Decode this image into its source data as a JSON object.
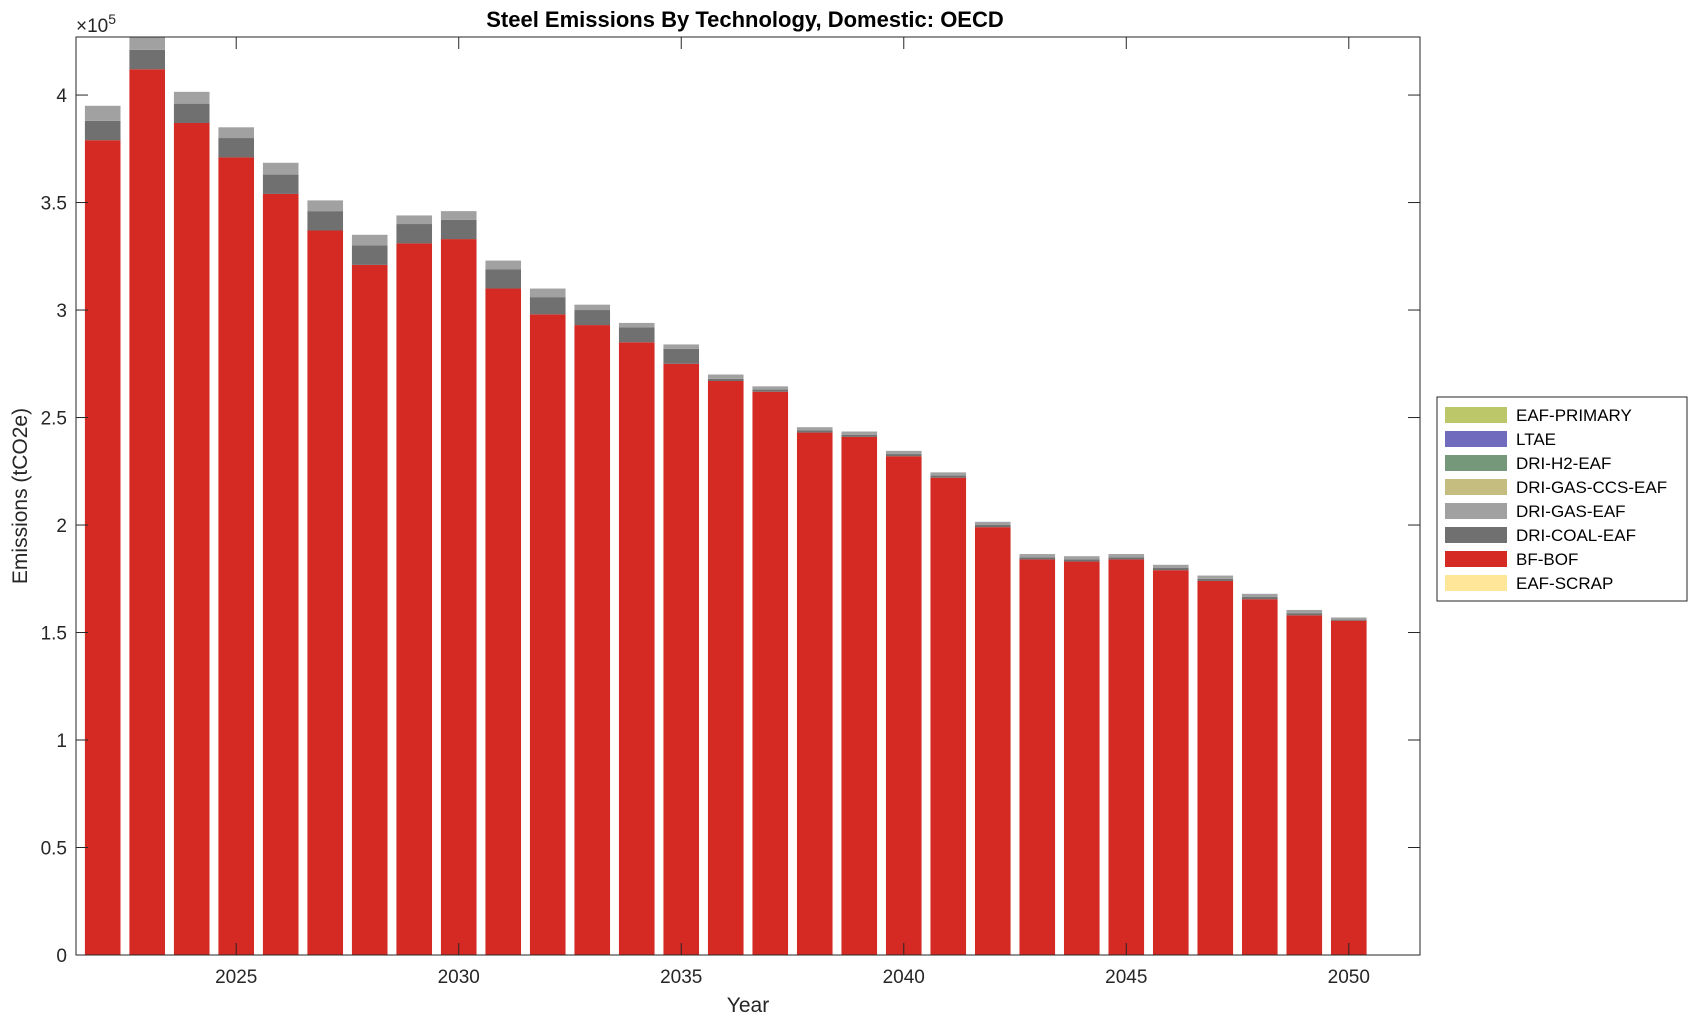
{
  "chart_data": {
    "type": "bar",
    "stacked": true,
    "title": "Steel Emissions By Technology, Domestic: OECD",
    "xlabel": "Year",
    "ylabel": "Emissions (tCO2e)",
    "y_multiplier_label": "×10",
    "y_multiplier_exponent": "5",
    "ylim": [
      0,
      4.27
    ],
    "xlim": [
      2021.4,
      2051.6
    ],
    "grid": false,
    "legend_position": "right",
    "yticks": [
      {
        "value": 0,
        "label": "0"
      },
      {
        "value": 0.5,
        "label": "0.5"
      },
      {
        "value": 1,
        "label": "1"
      },
      {
        "value": 1.5,
        "label": "1.5"
      },
      {
        "value": 2,
        "label": "2"
      },
      {
        "value": 2.5,
        "label": "2.5"
      },
      {
        "value": 3,
        "label": "3"
      },
      {
        "value": 3.5,
        "label": "3.5"
      },
      {
        "value": 4,
        "label": "4"
      }
    ],
    "xticks": [
      {
        "value": 2025,
        "label": "2025"
      },
      {
        "value": 2030,
        "label": "2030"
      },
      {
        "value": 2035,
        "label": "2035"
      },
      {
        "value": 2040,
        "label": "2040"
      },
      {
        "value": 2045,
        "label": "2045"
      },
      {
        "value": 2050,
        "label": "2050"
      }
    ],
    "categories": [
      2022,
      2023,
      2024,
      2025,
      2026,
      2027,
      2028,
      2029,
      2030,
      2031,
      2032,
      2033,
      2034,
      2035,
      2036,
      2037,
      2038,
      2039,
      2040,
      2041,
      2042,
      2043,
      2044,
      2045,
      2046,
      2047,
      2048,
      2049,
      2050
    ],
    "series": [
      {
        "name": "EAF-SCRAP",
        "color": "#ffe699",
        "values": [
          0,
          0,
          0,
          0,
          0,
          0,
          0,
          0,
          0,
          0,
          0,
          0,
          0,
          0,
          0,
          0,
          0,
          0,
          0,
          0,
          0,
          0,
          0,
          0,
          0,
          0,
          0,
          0,
          0
        ]
      },
      {
        "name": "BF-BOF",
        "color": "#d42a23",
        "values": [
          3.79,
          4.12,
          3.87,
          3.71,
          3.54,
          3.37,
          3.21,
          3.31,
          3.33,
          3.1,
          2.98,
          2.93,
          2.85,
          2.75,
          2.67,
          2.62,
          2.43,
          2.41,
          2.32,
          2.22,
          1.99,
          1.84,
          1.83,
          1.84,
          1.79,
          1.74,
          1.655,
          1.58,
          1.555
        ]
      },
      {
        "name": "DRI-COAL-EAF",
        "color": "#707070",
        "values": [
          0.09,
          0.09,
          0.09,
          0.09,
          0.09,
          0.09,
          0.09,
          0.09,
          0.09,
          0.09,
          0.08,
          0.07,
          0.07,
          0.07,
          0.01,
          0.01,
          0.01,
          0.01,
          0.01,
          0.01,
          0.01,
          0.01,
          0.01,
          0.01,
          0.01,
          0.01,
          0.01,
          0.01,
          0.005
        ]
      },
      {
        "name": "DRI-GAS-EAF",
        "color": "#a1a1a1",
        "values": [
          0.07,
          0.07,
          0.055,
          0.05,
          0.055,
          0.05,
          0.05,
          0.04,
          0.04,
          0.04,
          0.04,
          0.025,
          0.02,
          0.02,
          0.02,
          0.015,
          0.015,
          0.015,
          0.015,
          0.015,
          0.015,
          0.015,
          0.015,
          0.015,
          0.015,
          0.015,
          0.015,
          0.015,
          0.01
        ]
      },
      {
        "name": "DRI-GAS-CCS-EAF",
        "color": "#c5bc7f",
        "values": [
          0,
          0,
          0,
          0,
          0,
          0,
          0,
          0,
          0,
          0,
          0,
          0,
          0,
          0,
          0,
          0,
          0,
          0,
          0,
          0,
          0,
          0,
          0,
          0,
          0,
          0,
          0,
          0,
          0
        ]
      },
      {
        "name": "DRI-H2-EAF",
        "color": "#75987a",
        "values": [
          0,
          0,
          0,
          0,
          0,
          0,
          0,
          0,
          0,
          0,
          0,
          0,
          0,
          0,
          0,
          0,
          0,
          0,
          0,
          0,
          0,
          0,
          0,
          0,
          0,
          0,
          0,
          0,
          0
        ]
      },
      {
        "name": "LTAE",
        "color": "#716bbd",
        "values": [
          0,
          0,
          0,
          0,
          0,
          0,
          0,
          0,
          0,
          0,
          0,
          0,
          0,
          0,
          0,
          0,
          0,
          0,
          0,
          0,
          0,
          0,
          0,
          0,
          0,
          0,
          0,
          0,
          0
        ]
      },
      {
        "name": "EAF-PRIMARY",
        "color": "#bcc76a",
        "values": [
          0,
          0,
          0,
          0,
          0,
          0,
          0,
          0,
          0,
          0,
          0,
          0,
          0,
          0,
          0,
          0,
          0,
          0,
          0,
          0,
          0,
          0,
          0,
          0,
          0,
          0,
          0,
          0,
          0
        ]
      }
    ],
    "legend_order": [
      "EAF-PRIMARY",
      "LTAE",
      "DRI-H2-EAF",
      "DRI-GAS-CCS-EAF",
      "DRI-GAS-EAF",
      "DRI-COAL-EAF",
      "BF-BOF",
      "EAF-SCRAP"
    ]
  }
}
